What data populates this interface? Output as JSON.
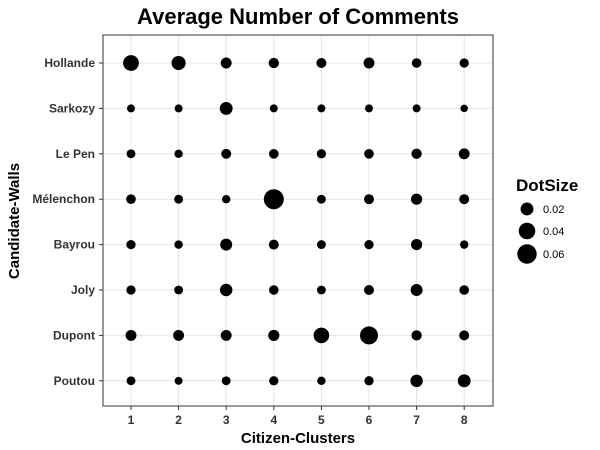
{
  "chart_data": {
    "type": "scatter",
    "title": "Average Number of Comments",
    "xlabel": "Citizen-Clusters",
    "ylabel": "Candidate-Walls",
    "x_categories": [
      "1",
      "2",
      "3",
      "4",
      "5",
      "6",
      "7",
      "8"
    ],
    "y_categories": [
      "Hollande",
      "Sarkozy",
      "Le Pen",
      "Mélenchon",
      "Bayrou",
      "Joly",
      "Dupont",
      "Poutou"
    ],
    "grid": true,
    "legend": {
      "title": "DotSize",
      "placement": "right",
      "entries": [
        {
          "label": "0.02",
          "value": 0.02
        },
        {
          "label": "0.04",
          "value": 0.04
        },
        {
          "label": "0.06",
          "value": 0.06
        }
      ]
    },
    "size_domain": [
      0.0,
      0.065
    ],
    "dot_color": "#000000",
    "values": [
      [
        0.035,
        0.026,
        0.012,
        0.01,
        0.009,
        0.012,
        0.008,
        0.007
      ],
      [
        0.004,
        0.004,
        0.02,
        0.004,
        0.004,
        0.004,
        0.004,
        0.003
      ],
      [
        0.006,
        0.005,
        0.009,
        0.008,
        0.007,
        0.008,
        0.01,
        0.012
      ],
      [
        0.008,
        0.006,
        0.005,
        0.065,
        0.006,
        0.009,
        0.013,
        0.009
      ],
      [
        0.007,
        0.005,
        0.016,
        0.009,
        0.006,
        0.007,
        0.013,
        0.005
      ],
      [
        0.007,
        0.006,
        0.018,
        0.008,
        0.006,
        0.009,
        0.016,
        0.008
      ],
      [
        0.012,
        0.012,
        0.012,
        0.013,
        0.034,
        0.05,
        0.01,
        0.009
      ],
      [
        0.006,
        0.004,
        0.006,
        0.007,
        0.005,
        0.007,
        0.018,
        0.02
      ]
    ]
  }
}
